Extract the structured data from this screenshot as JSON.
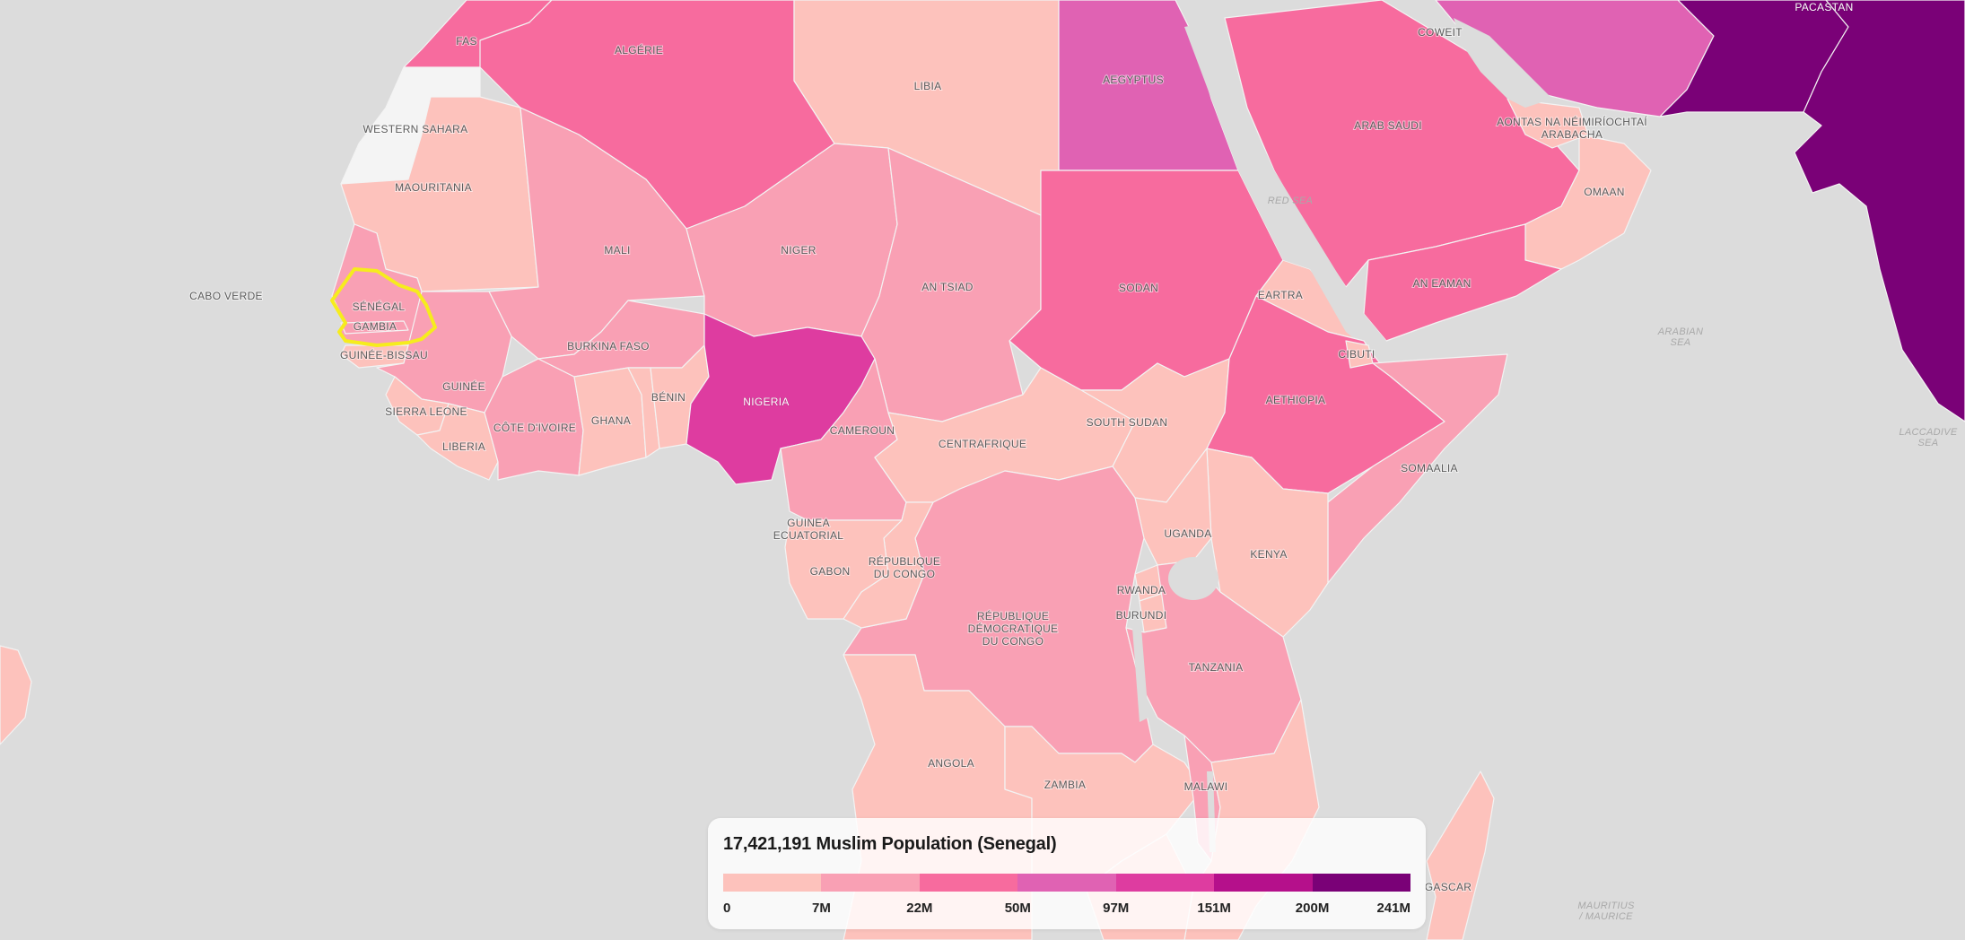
{
  "map": {
    "selected_country": "Senegal",
    "labels": {
      "fas": "FAS",
      "algerie": "ALGÉRIE",
      "libia": "LIBIA",
      "aegyptus": "AEGYPTUS",
      "koweit": "COWEIT",
      "pacastan": "PACASTAN",
      "western_sahara": "WESTERN SAHARA",
      "maouritania": "MAOURITANIA",
      "arab_saudi": "ARAB SAUDI",
      "aontas": "AONTAS NA NÉIMIRÍOCHTAÍ",
      "arabacha": "ARABACHA",
      "red_sea": "RED SEA",
      "omaan": "OMAAN",
      "mali": "MALI",
      "niger": "NIGER",
      "tchad": "AN TSIAD",
      "sodan": "SODAN",
      "eartra": "EARTRA",
      "an_eaman": "AN EAMAN",
      "cabo_verde": "CABO VERDE",
      "senegal": "SÉNÉGAL",
      "gambia": "GAMBIA",
      "guinee_bissau": "GUINÉE-BISSAU",
      "burkina_faso": "BURKINA FASO",
      "arabian_sea_1": "ARABIAN",
      "arabian_sea_2": "SEA",
      "djibouti": "CIBUTI",
      "guinee": "GUINÉE",
      "benin": "BÉNIN",
      "nigeria": "NIGERIA",
      "sierra_leone": "SIERRA LEONE",
      "cote_divoire": "CÔTE D'IVOIRE",
      "ghana": "GHANA",
      "cameroun": "CAMEROUN",
      "south_sudan": "SOUTH SUDAN",
      "aethiopia": "AETHIOPIA",
      "liberia": "LIBERIA",
      "centrafrique": "CENTRAFRIQUE",
      "laccadive_1": "LACCADIVE",
      "laccadive_2": "SEA",
      "somaalia": "SOMAALIA",
      "guinea_ecuatorial_1": "GUINEA",
      "guinea_ecuatorial_2": "ECUATORIAL",
      "uganda": "UGANDA",
      "kenya": "KENYA",
      "rep_congo_1": "RÉPUBLIQUE",
      "rep_congo_2": "DU CONGO",
      "gabon": "GABON",
      "rwanda": "RWANDA",
      "burundi": "BURUNDI",
      "rdc_1": "RÉPUBLIQUE",
      "rdc_2": "DÉMOCRATIQUE",
      "rdc_3": "DU CONGO",
      "tanzania": "TANZANIA",
      "angola": "ANGOLA",
      "zambia": "ZAMBIA",
      "malawi": "MALAWI",
      "madagascar": "GASCAR",
      "mauritius_1": "MAURITIUS",
      "mauritius_2": "/ MAURICE"
    }
  },
  "legend": {
    "value_text": "17,421,191",
    "metric_text": "Muslim Population (Senegal)",
    "colors": [
      "#fdc2bc",
      "#f9a0b4",
      "#f76b9e",
      "#e062b3",
      "#de3ca0",
      "#b5108b",
      "#7a0177"
    ],
    "ticks": [
      "0",
      "7M",
      "22M",
      "50M",
      "97M",
      "151M",
      "200M",
      "241M"
    ]
  },
  "colors": {
    "water": "#dcdcdc",
    "no_data": "#f4f4f4",
    "highlight": "#f6ec1d"
  }
}
